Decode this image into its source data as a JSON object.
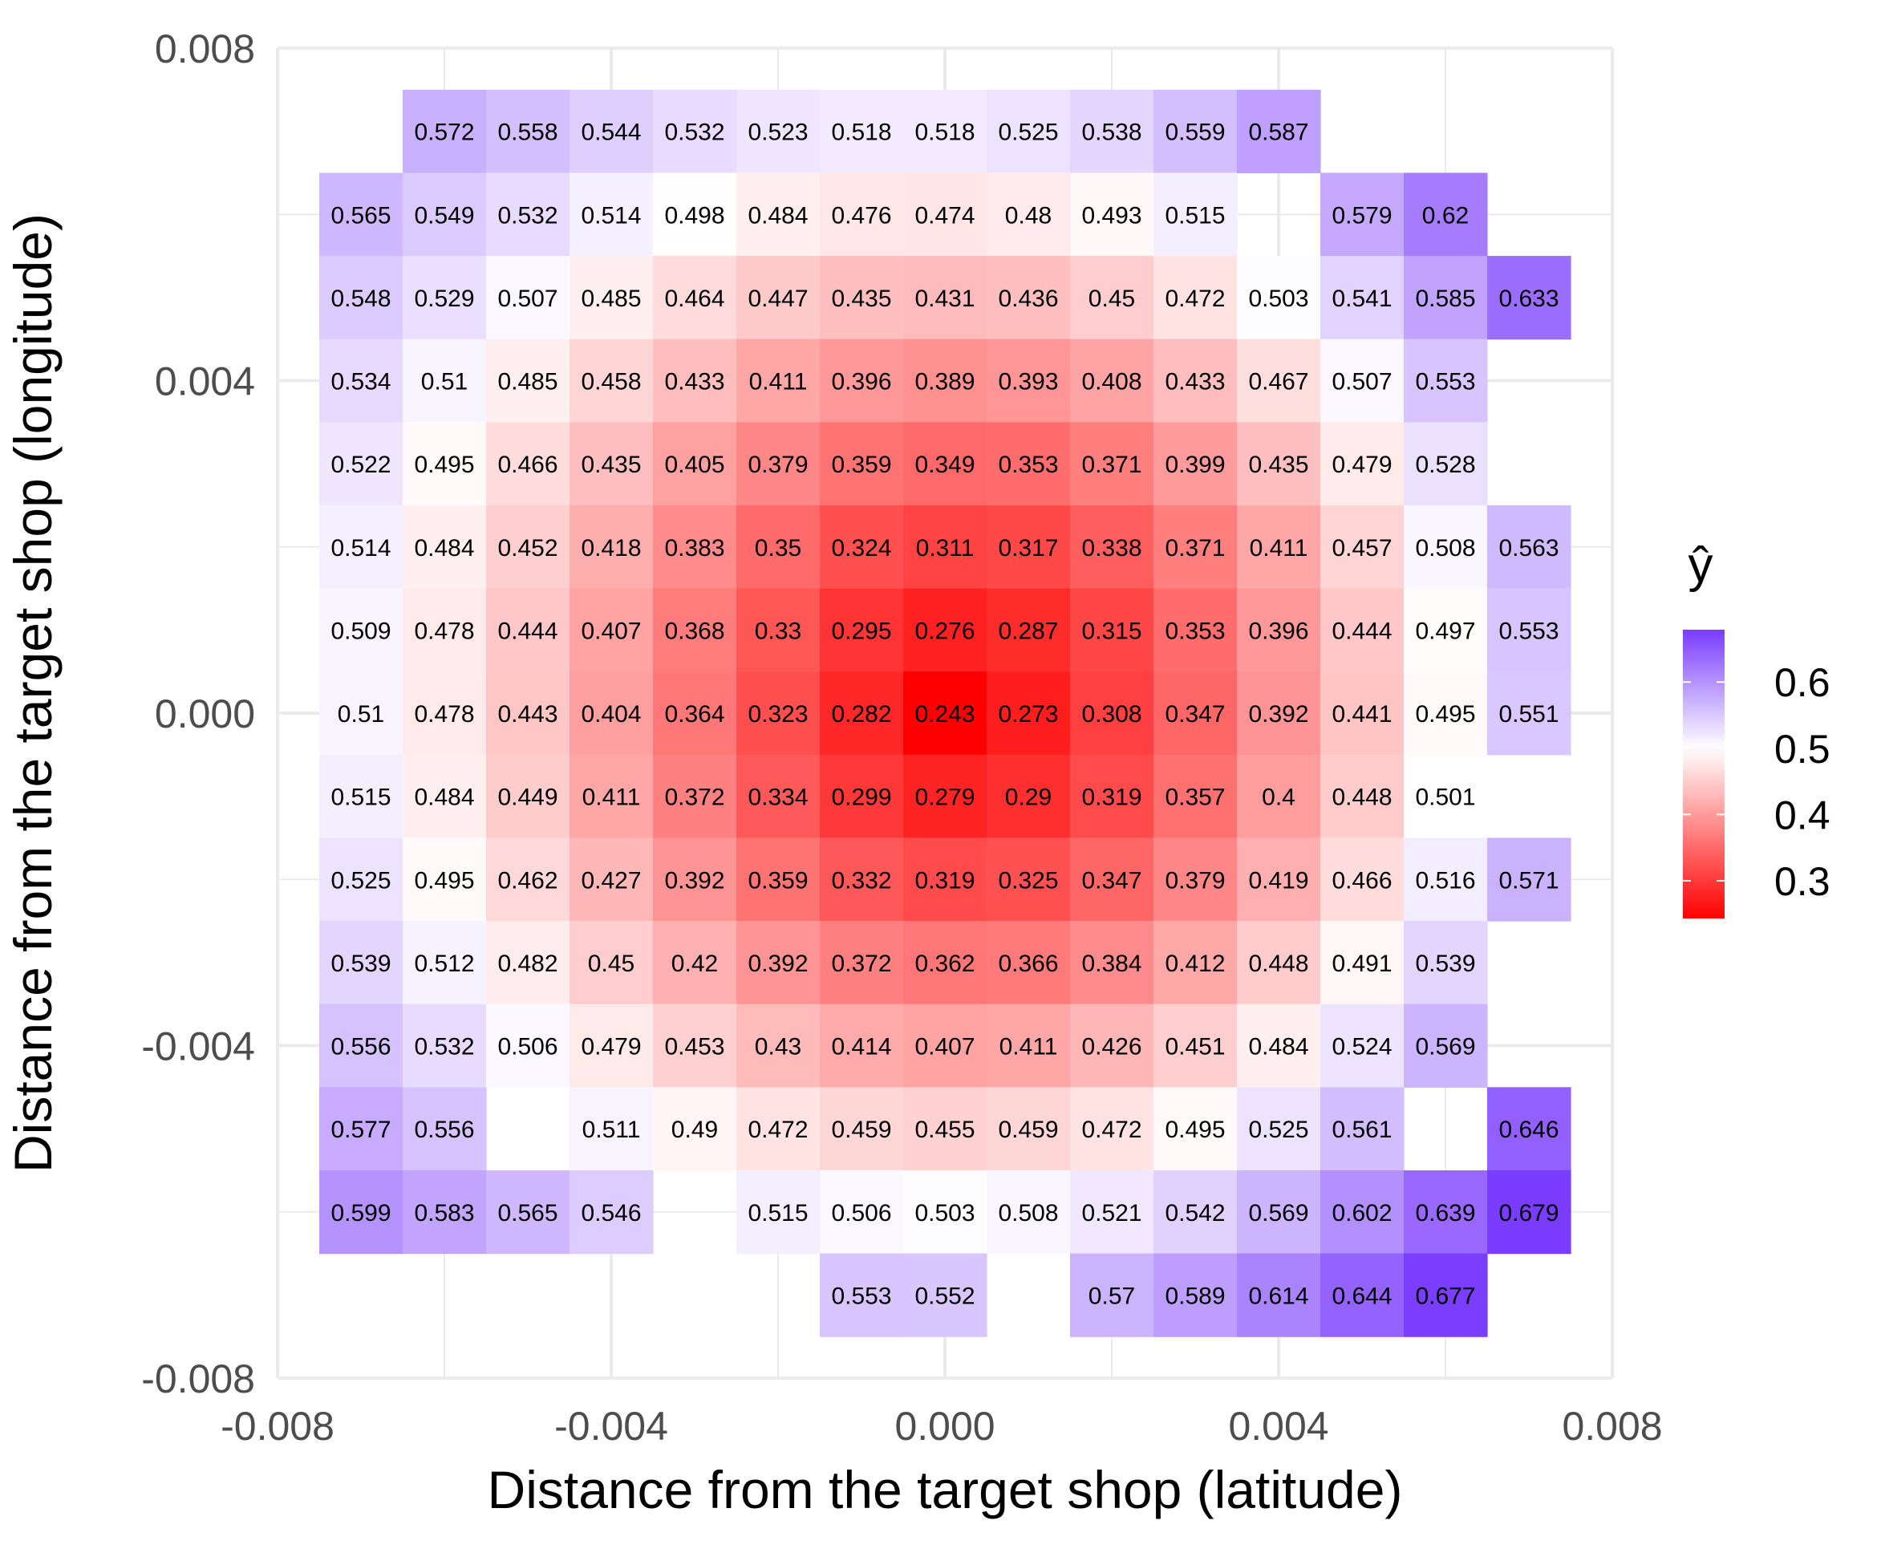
{
  "chart_data": {
    "type": "heatmap",
    "title": "",
    "xlabel": "Distance from the target shop (latitude)",
    "ylabel": "Distance from the target shop (longitude)",
    "xlim": [
      -0.008,
      0.008
    ],
    "ylim": [
      -0.008,
      0.008
    ],
    "x_ticks": [
      "-0.008",
      "-0.004",
      "0.000",
      "0.004",
      "0.008"
    ],
    "y_ticks": [
      "0.008",
      "0.004",
      "0.000",
      "-0.004",
      "-0.008"
    ],
    "x_tick_values": [
      -0.008,
      -0.004,
      0.0,
      0.004,
      0.008
    ],
    "y_tick_values": [
      0.008,
      0.004,
      0.0,
      -0.004,
      -0.008
    ],
    "grid": true,
    "cell_size": 0.001,
    "x_centers": [
      -0.007,
      -0.006,
      -0.005,
      -0.004,
      -0.003,
      -0.002,
      -0.001,
      0.0,
      0.001,
      0.002,
      0.003,
      0.004,
      0.005,
      0.006,
      0.007
    ],
    "y_centers": [
      0.007,
      0.006,
      0.005,
      0.004,
      0.003,
      0.002,
      0.001,
      0.0,
      -0.001,
      -0.002,
      -0.003,
      -0.004,
      -0.005,
      -0.006,
      -0.007
    ],
    "rows": [
      [
        null,
        "0.572",
        "0.558",
        "0.544",
        "0.532",
        "0.523",
        "0.518",
        "0.518",
        "0.525",
        "0.538",
        "0.559",
        "0.587",
        null,
        null,
        null
      ],
      [
        "0.565",
        "0.549",
        "0.532",
        "0.514",
        "0.498",
        "0.484",
        "0.476",
        "0.474",
        "0.48",
        "0.493",
        "0.515",
        null,
        "0.579",
        "0.62",
        null
      ],
      [
        "0.548",
        "0.529",
        "0.507",
        "0.485",
        "0.464",
        "0.447",
        "0.435",
        "0.431",
        "0.436",
        "0.45",
        "0.472",
        "0.503",
        "0.541",
        "0.585",
        "0.633"
      ],
      [
        "0.534",
        "0.51",
        "0.485",
        "0.458",
        "0.433",
        "0.411",
        "0.396",
        "0.389",
        "0.393",
        "0.408",
        "0.433",
        "0.467",
        "0.507",
        "0.553",
        null
      ],
      [
        "0.522",
        "0.495",
        "0.466",
        "0.435",
        "0.405",
        "0.379",
        "0.359",
        "0.349",
        "0.353",
        "0.371",
        "0.399",
        "0.435",
        "0.479",
        "0.528",
        null
      ],
      [
        "0.514",
        "0.484",
        "0.452",
        "0.418",
        "0.383",
        "0.35",
        "0.324",
        "0.311",
        "0.317",
        "0.338",
        "0.371",
        "0.411",
        "0.457",
        "0.508",
        "0.563"
      ],
      [
        "0.509",
        "0.478",
        "0.444",
        "0.407",
        "0.368",
        "0.33",
        "0.295",
        "0.276",
        "0.287",
        "0.315",
        "0.353",
        "0.396",
        "0.444",
        "0.497",
        "0.553"
      ],
      [
        "0.51",
        "0.478",
        "0.443",
        "0.404",
        "0.364",
        "0.323",
        "0.282",
        "0.243",
        "0.273",
        "0.308",
        "0.347",
        "0.392",
        "0.441",
        "0.495",
        "0.551"
      ],
      [
        "0.515",
        "0.484",
        "0.449",
        "0.411",
        "0.372",
        "0.334",
        "0.299",
        "0.279",
        "0.29",
        "0.319",
        "0.357",
        "0.4",
        "0.448",
        "0.501",
        null
      ],
      [
        "0.525",
        "0.495",
        "0.462",
        "0.427",
        "0.392",
        "0.359",
        "0.332",
        "0.319",
        "0.325",
        "0.347",
        "0.379",
        "0.419",
        "0.466",
        "0.516",
        "0.571"
      ],
      [
        "0.539",
        "0.512",
        "0.482",
        "0.45",
        "0.42",
        "0.392",
        "0.372",
        "0.362",
        "0.366",
        "0.384",
        "0.412",
        "0.448",
        "0.491",
        "0.539",
        null
      ],
      [
        "0.556",
        "0.532",
        "0.506",
        "0.479",
        "0.453",
        "0.43",
        "0.414",
        "0.407",
        "0.411",
        "0.426",
        "0.451",
        "0.484",
        "0.524",
        "0.569",
        null
      ],
      [
        "0.577",
        "0.556",
        null,
        "0.511",
        "0.49",
        "0.472",
        "0.459",
        "0.455",
        "0.459",
        "0.472",
        "0.495",
        "0.525",
        "0.561",
        null,
        "0.646"
      ],
      [
        "0.599",
        "0.583",
        "0.565",
        "0.546",
        null,
        "0.515",
        "0.506",
        "0.503",
        "0.508",
        "0.521",
        "0.542",
        "0.569",
        "0.602",
        "0.639",
        "0.679"
      ],
      [
        null,
        null,
        null,
        null,
        null,
        null,
        "0.553",
        "0.552",
        null,
        "0.57",
        "0.589",
        "0.614",
        "0.644",
        "0.677",
        null
      ]
    ],
    "legend": {
      "title": "ŷ",
      "position": "right",
      "ticks": [
        "0.6",
        "0.5",
        "0.4",
        "0.3"
      ],
      "tick_values": [
        0.6,
        0.5,
        0.4,
        0.3
      ],
      "range": [
        0.243,
        0.679
      ],
      "midpoint": 0.5,
      "low_color": "#ff0000",
      "mid_color": "#ffffff",
      "high_color": "#7a3cff"
    },
    "colors": {
      "grid": "#ebebeb",
      "tick_text": "#4d4d4d",
      "text": "#000000"
    }
  }
}
